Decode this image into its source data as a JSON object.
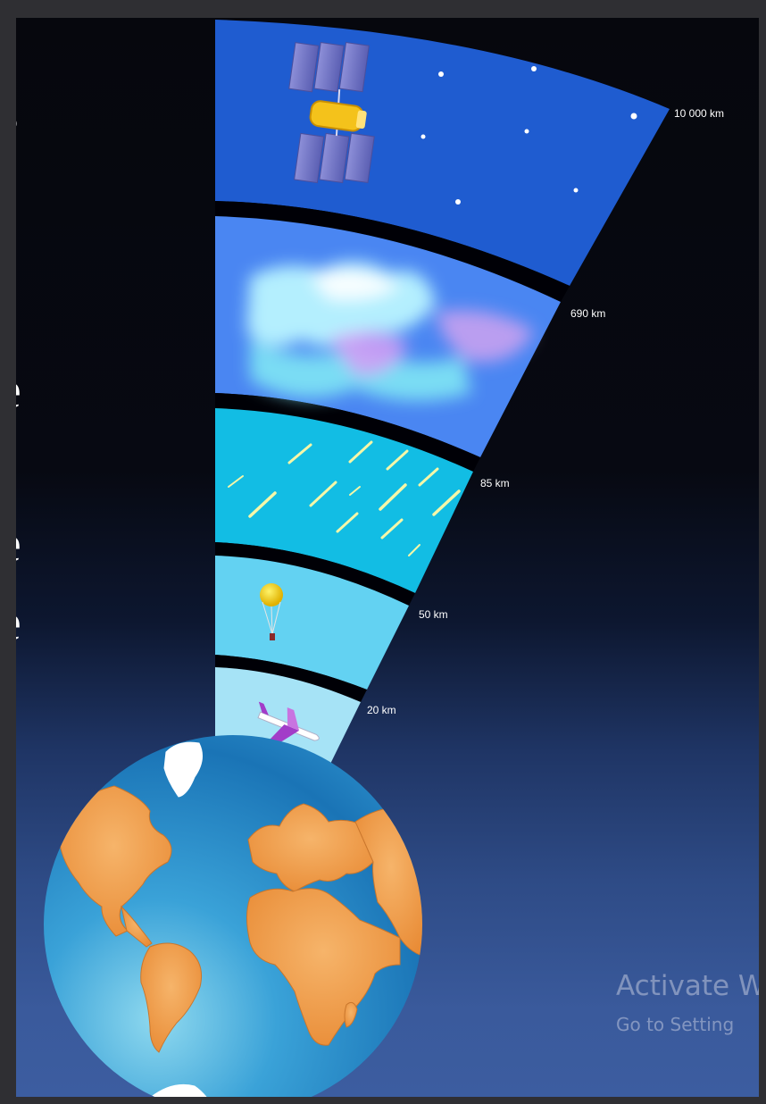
{
  "side_letters": [
    "s",
    "e",
    "e",
    "e"
  ],
  "altitude_labels": [
    "10 000 km",
    "690 km",
    "85 km",
    "50 km",
    "20 km"
  ],
  "layers": [
    {
      "icon": "satellite-icon",
      "color": "#1f5cd0"
    },
    {
      "icon": "aurora-icon",
      "color": "#4a86f2"
    },
    {
      "icon": "meteor-icon",
      "color": "#12bde4"
    },
    {
      "icon": "weather-balloon-icon",
      "color": "#63d2f2"
    },
    {
      "icon": "airplane-icon",
      "color": "#a6e3f6"
    }
  ],
  "globe": {
    "ocean_color": "#2a8fcf",
    "land_color": "#f29a45"
  },
  "watermark": {
    "title": "Activate W",
    "subtitle": "Go to Setting"
  }
}
